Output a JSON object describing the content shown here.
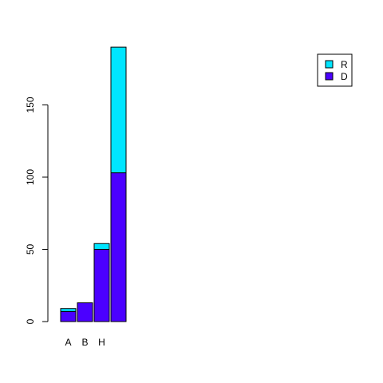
{
  "chart_data": {
    "type": "bar",
    "stacked": true,
    "title": "",
    "xlabel": "",
    "ylabel": "",
    "categories": [
      "A",
      "B",
      "H",
      ""
    ],
    "series": [
      {
        "name": "D",
        "color": "#4B00FF",
        "values": [
          7,
          13,
          50,
          103
        ]
      },
      {
        "name": "R",
        "color": "#00E5FF",
        "values": [
          2,
          0,
          4,
          87
        ]
      }
    ],
    "ylim": [
      0,
      190
    ],
    "yticks": [
      0,
      50,
      100,
      150
    ],
    "grid": false,
    "legend": {
      "position": "top-right",
      "entries": [
        "R",
        "D"
      ]
    }
  }
}
